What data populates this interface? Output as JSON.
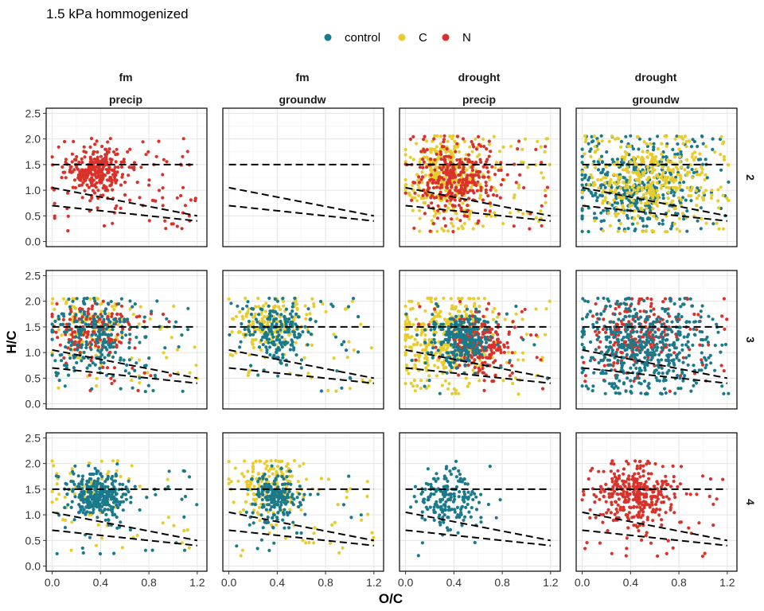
{
  "title": "1.5 kPa hommogenized",
  "colors": {
    "control": "#1a7a8c",
    "C": "#e8cc2e",
    "N": "#d9322a"
  },
  "legend": [
    {
      "key": "control",
      "label": "control"
    },
    {
      "key": "C",
      "label": "C"
    },
    {
      "key": "N",
      "label": "N"
    }
  ],
  "columns": [
    {
      "line1": "fm",
      "line2": "precip"
    },
    {
      "line1": "fm",
      "line2": "groundw"
    },
    {
      "line1": "drought",
      "line2": "precip"
    },
    {
      "line1": "drought",
      "line2": "groundw"
    }
  ],
  "rows": [
    {
      "label": "2"
    },
    {
      "label": "3"
    },
    {
      "label": "4"
    }
  ],
  "axes": {
    "xlabel": "O/C",
    "ylabel": "H/C",
    "xlim": [
      -0.05,
      1.28
    ],
    "ylim": [
      -0.1,
      2.6
    ],
    "xticks": [
      "0.0",
      "0.4",
      "0.8",
      "1.2"
    ],
    "yticks": [
      "0.0",
      "0.5",
      "1.0",
      "1.5",
      "2.0",
      "2.5"
    ]
  },
  "chart_data": {
    "type": "scatter",
    "title": "1.5 kPa hommogenized",
    "xlabel": "O/C",
    "ylabel": "H/C",
    "xlim": [
      -0.05,
      1.28
    ],
    "ylim": [
      -0.1,
      2.6
    ],
    "grid": true,
    "legend_position": "top",
    "facet_columns": [
      "fm / precip",
      "fm / groundw",
      "drought / precip",
      "drought / groundw"
    ],
    "facet_rows": [
      "2",
      "3",
      "4"
    ],
    "reference_lines": [
      {
        "x": [
          0,
          1.2
        ],
        "y": [
          1.5,
          1.5
        ]
      },
      {
        "x": [
          0,
          1.2
        ],
        "y": [
          1.05,
          0.5
        ]
      },
      {
        "x": [
          0,
          1.2
        ],
        "y": [
          0.7,
          0.4
        ]
      }
    ],
    "panels": [
      {
        "row": "2",
        "col": "fm / precip",
        "series": [
          {
            "name": "N",
            "cx": 0.36,
            "cy": 1.38,
            "sx": 0.12,
            "sy": 0.22,
            "n": 260,
            "spread": [
              0.0,
              1.2,
              0.2,
              2.0,
              90
            ]
          }
        ]
      },
      {
        "row": "2",
        "col": "fm / groundw",
        "series": []
      },
      {
        "row": "2",
        "col": "drought / precip",
        "series": [
          {
            "name": "C",
            "cx": 0.32,
            "cy": 1.3,
            "sx": 0.18,
            "sy": 0.38,
            "n": 320,
            "spread": [
              0.0,
              1.2,
              0.2,
              2.1,
              80
            ]
          },
          {
            "name": "N",
            "cx": 0.42,
            "cy": 1.2,
            "sx": 0.17,
            "sy": 0.35,
            "n": 280,
            "spread": [
              0.0,
              1.2,
              0.2,
              2.0,
              60
            ]
          }
        ]
      },
      {
        "row": "2",
        "col": "drought / groundw",
        "series": [
          {
            "name": "control",
            "cx": 0.45,
            "cy": 1.1,
            "sx": 0.25,
            "sy": 0.45,
            "n": 380,
            "spread": [
              0.0,
              1.2,
              0.2,
              2.1,
              60
            ]
          },
          {
            "name": "C",
            "cx": 0.55,
            "cy": 1.15,
            "sx": 0.25,
            "sy": 0.45,
            "n": 360,
            "spread": [
              0.0,
              1.2,
              0.2,
              2.4,
              60
            ]
          }
        ]
      },
      {
        "row": "3",
        "col": "fm / precip",
        "series": [
          {
            "name": "C",
            "cx": 0.3,
            "cy": 1.5,
            "sx": 0.15,
            "sy": 0.3,
            "n": 120,
            "spread": [
              0.0,
              1.2,
              0.2,
              2.0,
              40
            ]
          },
          {
            "name": "N",
            "cx": 0.32,
            "cy": 1.45,
            "sx": 0.15,
            "sy": 0.3,
            "n": 140,
            "spread": [
              0.0,
              1.0,
              0.2,
              2.0,
              30
            ]
          },
          {
            "name": "control",
            "cx": 0.35,
            "cy": 1.3,
            "sx": 0.18,
            "sy": 0.4,
            "n": 200,
            "spread": [
              0.0,
              1.2,
              0.2,
              2.0,
              50
            ]
          }
        ]
      },
      {
        "row": "3",
        "col": "fm / groundw",
        "series": [
          {
            "name": "C",
            "cx": 0.35,
            "cy": 1.6,
            "sx": 0.15,
            "sy": 0.25,
            "n": 160,
            "spread": [
              0.0,
              1.2,
              0.2,
              2.0,
              40
            ]
          },
          {
            "name": "control",
            "cx": 0.42,
            "cy": 1.4,
            "sx": 0.12,
            "sy": 0.3,
            "n": 170,
            "spread": [
              0.0,
              1.2,
              0.2,
              2.1,
              40
            ]
          }
        ]
      },
      {
        "row": "3",
        "col": "drought / precip",
        "series": [
          {
            "name": "C",
            "cx": 0.3,
            "cy": 1.3,
            "sx": 0.2,
            "sy": 0.45,
            "n": 300,
            "spread": [
              0.0,
              1.2,
              0.2,
              2.0,
              80
            ]
          },
          {
            "name": "N",
            "cx": 0.6,
            "cy": 1.1,
            "sx": 0.12,
            "sy": 0.3,
            "n": 200,
            "spread": [
              0.0,
              1.2,
              0.2,
              2.0,
              30
            ]
          },
          {
            "name": "control",
            "cx": 0.45,
            "cy": 1.25,
            "sx": 0.12,
            "sy": 0.25,
            "n": 240,
            "spread": [
              0.0,
              1.2,
              0.2,
              2.0,
              20
            ]
          }
        ]
      },
      {
        "row": "3",
        "col": "drought / groundw",
        "series": [
          {
            "name": "N",
            "cx": 0.45,
            "cy": 1.4,
            "sx": 0.2,
            "sy": 0.35,
            "n": 200,
            "spread": [
              0.0,
              1.2,
              0.2,
              2.3,
              40
            ]
          },
          {
            "name": "control",
            "cx": 0.5,
            "cy": 1.1,
            "sx": 0.25,
            "sy": 0.45,
            "n": 420,
            "spread": [
              0.0,
              1.2,
              0.2,
              2.1,
              80
            ]
          }
        ]
      },
      {
        "row": "4",
        "col": "fm / precip",
        "series": [
          {
            "name": "C",
            "cx": 0.3,
            "cy": 1.5,
            "sx": 0.18,
            "sy": 0.3,
            "n": 60,
            "spread": [
              0.0,
              1.2,
              0.2,
              2.0,
              25
            ]
          },
          {
            "name": "control",
            "cx": 0.38,
            "cy": 1.38,
            "sx": 0.12,
            "sy": 0.22,
            "n": 300,
            "spread": [
              0.0,
              1.2,
              0.2,
              2.0,
              40
            ]
          }
        ]
      },
      {
        "row": "4",
        "col": "fm / groundw",
        "series": [
          {
            "name": "C",
            "cx": 0.32,
            "cy": 1.55,
            "sx": 0.15,
            "sy": 0.3,
            "n": 160,
            "spread": [
              0.0,
              1.2,
              0.2,
              2.0,
              40
            ]
          },
          {
            "name": "control",
            "cx": 0.4,
            "cy": 1.3,
            "sx": 0.1,
            "sy": 0.25,
            "n": 180,
            "spread": [
              0.0,
              1.2,
              0.2,
              2.0,
              20
            ]
          }
        ]
      },
      {
        "row": "4",
        "col": "drought / precip",
        "series": [
          {
            "name": "control",
            "cx": 0.35,
            "cy": 1.35,
            "sx": 0.12,
            "sy": 0.3,
            "n": 180,
            "spread": [
              0.0,
              0.8,
              0.2,
              2.0,
              10
            ]
          }
        ]
      },
      {
        "row": "4",
        "col": "drought / groundw",
        "series": [
          {
            "name": "N",
            "cx": 0.45,
            "cy": 1.4,
            "sx": 0.15,
            "sy": 0.28,
            "n": 300,
            "spread": [
              0.0,
              1.2,
              0.2,
              2.0,
              60
            ]
          }
        ]
      }
    ]
  }
}
